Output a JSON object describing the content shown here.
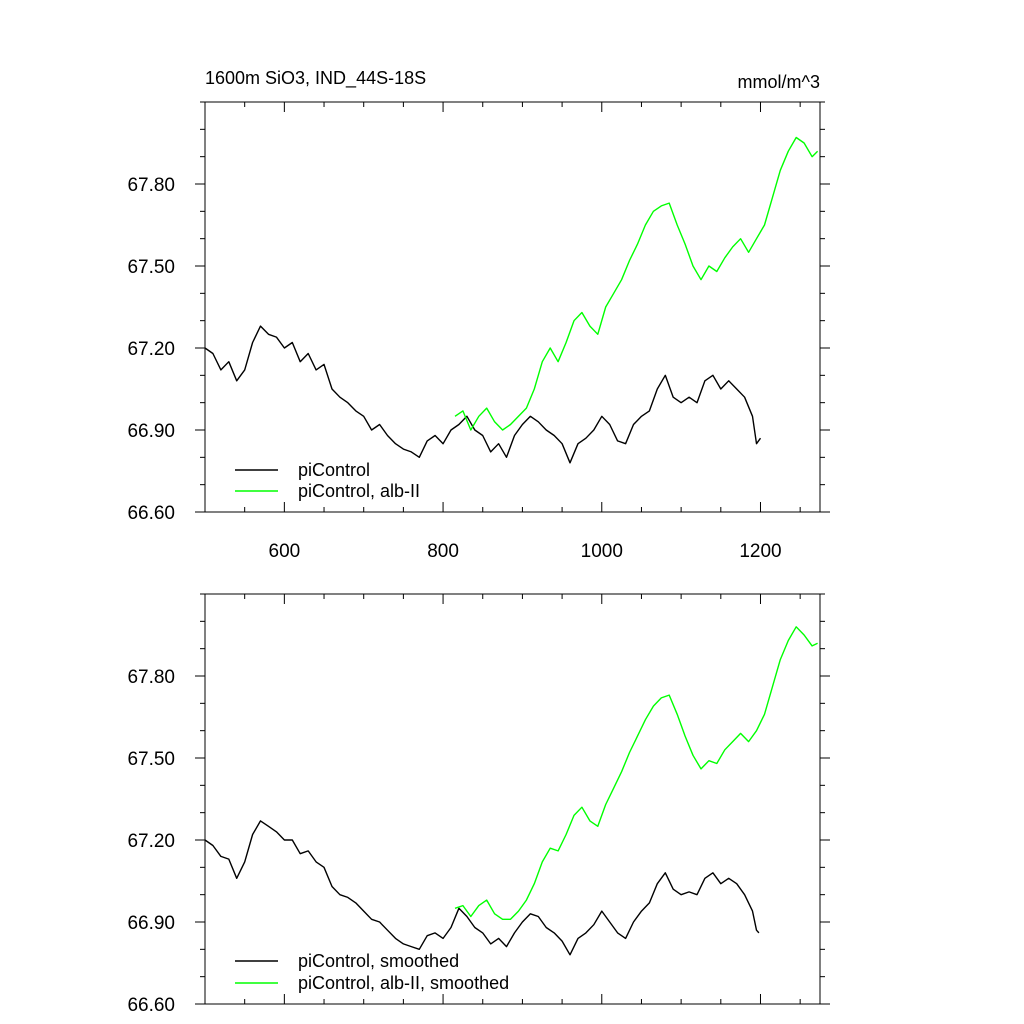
{
  "chart_data": [
    {
      "type": "line",
      "title_left": "1600m SiO3, IND_44S-18S",
      "title_right": "mmol/m^3",
      "xlabel": "",
      "ylabel": "",
      "xlim": [
        500,
        1275
      ],
      "ylim": [
        66.6,
        68.1
      ],
      "xticks": [
        600,
        800,
        1000,
        1200
      ],
      "xtick_labels": [
        "600",
        "800",
        "1000",
        "1200"
      ],
      "yticks": [
        66.6,
        66.9,
        67.2,
        67.5,
        67.8
      ],
      "ytick_labels": [
        "66.60",
        "66.90",
        "67.20",
        "67.50",
        "67.80"
      ],
      "legend_position": "bottom-left",
      "series": [
        {
          "name": "piControl",
          "color": "#000000",
          "points": [
            [
              500,
              67.2
            ],
            [
              510,
              67.18
            ],
            [
              520,
              67.12
            ],
            [
              530,
              67.15
            ],
            [
              540,
              67.08
            ],
            [
              550,
              67.12
            ],
            [
              560,
              67.22
            ],
            [
              570,
              67.28
            ],
            [
              580,
              67.25
            ],
            [
              590,
              67.24
            ],
            [
              600,
              67.2
            ],
            [
              610,
              67.22
            ],
            [
              620,
              67.15
            ],
            [
              630,
              67.18
            ],
            [
              640,
              67.12
            ],
            [
              650,
              67.14
            ],
            [
              660,
              67.05
            ],
            [
              670,
              67.02
            ],
            [
              680,
              67.0
            ],
            [
              690,
              66.97
            ],
            [
              700,
              66.95
            ],
            [
              710,
              66.9
            ],
            [
              720,
              66.92
            ],
            [
              730,
              66.88
            ],
            [
              740,
              66.85
            ],
            [
              750,
              66.83
            ],
            [
              760,
              66.82
            ],
            [
              770,
              66.8
            ],
            [
              780,
              66.86
            ],
            [
              790,
              66.88
            ],
            [
              800,
              66.85
            ],
            [
              810,
              66.9
            ],
            [
              820,
              66.92
            ],
            [
              830,
              66.95
            ],
            [
              840,
              66.9
            ],
            [
              850,
              66.88
            ],
            [
              860,
              66.82
            ],
            [
              870,
              66.85
            ],
            [
              880,
              66.8
            ],
            [
              890,
              66.88
            ],
            [
              900,
              66.92
            ],
            [
              910,
              66.95
            ],
            [
              920,
              66.93
            ],
            [
              930,
              66.9
            ],
            [
              940,
              66.88
            ],
            [
              950,
              66.85
            ],
            [
              960,
              66.78
            ],
            [
              970,
              66.85
            ],
            [
              980,
              66.87
            ],
            [
              990,
              66.9
            ],
            [
              1000,
              66.95
            ],
            [
              1010,
              66.92
            ],
            [
              1020,
              66.86
            ],
            [
              1030,
              66.85
            ],
            [
              1040,
              66.92
            ],
            [
              1050,
              66.95
            ],
            [
              1060,
              66.97
            ],
            [
              1070,
              67.05
            ],
            [
              1080,
              67.1
            ],
            [
              1090,
              67.02
            ],
            [
              1100,
              67.0
            ],
            [
              1110,
              67.02
            ],
            [
              1120,
              67.0
            ],
            [
              1130,
              67.08
            ],
            [
              1140,
              67.1
            ],
            [
              1150,
              67.05
            ],
            [
              1160,
              67.08
            ],
            [
              1170,
              67.05
            ],
            [
              1180,
              67.02
            ],
            [
              1190,
              66.95
            ],
            [
              1195,
              66.85
            ],
            [
              1200,
              66.87
            ]
          ]
        },
        {
          "name": "piControl, alb-II",
          "color": "#00ff00",
          "points": [
            [
              815,
              66.95
            ],
            [
              825,
              66.97
            ],
            [
              835,
              66.9
            ],
            [
              845,
              66.95
            ],
            [
              855,
              66.98
            ],
            [
              865,
              66.93
            ],
            [
              875,
              66.9
            ],
            [
              885,
              66.92
            ],
            [
              895,
              66.95
            ],
            [
              905,
              66.98
            ],
            [
              915,
              67.05
            ],
            [
              925,
              67.15
            ],
            [
              935,
              67.2
            ],
            [
              945,
              67.15
            ],
            [
              955,
              67.22
            ],
            [
              965,
              67.3
            ],
            [
              975,
              67.33
            ],
            [
              985,
              67.28
            ],
            [
              995,
              67.25
            ],
            [
              1005,
              67.35
            ],
            [
              1015,
              67.4
            ],
            [
              1025,
              67.45
            ],
            [
              1035,
              67.52
            ],
            [
              1045,
              67.58
            ],
            [
              1055,
              67.65
            ],
            [
              1065,
              67.7
            ],
            [
              1075,
              67.72
            ],
            [
              1085,
              67.73
            ],
            [
              1095,
              67.65
            ],
            [
              1105,
              67.58
            ],
            [
              1115,
              67.5
            ],
            [
              1125,
              67.45
            ],
            [
              1135,
              67.5
            ],
            [
              1145,
              67.48
            ],
            [
              1155,
              67.53
            ],
            [
              1165,
              67.57
            ],
            [
              1175,
              67.6
            ],
            [
              1185,
              67.55
            ],
            [
              1195,
              67.6
            ],
            [
              1205,
              67.65
            ],
            [
              1215,
              67.75
            ],
            [
              1225,
              67.85
            ],
            [
              1235,
              67.92
            ],
            [
              1245,
              67.97
            ],
            [
              1255,
              67.95
            ],
            [
              1265,
              67.9
            ],
            [
              1272,
              67.92
            ]
          ]
        }
      ]
    },
    {
      "type": "line",
      "xlim": [
        500,
        1275
      ],
      "ylim": [
        66.6,
        68.1
      ],
      "xticks": [
        600,
        800,
        1000,
        1200
      ],
      "yticks": [
        66.6,
        66.9,
        67.2,
        67.5,
        67.8
      ],
      "ytick_labels": [
        "66.60",
        "66.90",
        "67.20",
        "67.50",
        "67.80"
      ],
      "legend_position": "bottom-left",
      "series": [
        {
          "name": "piControl, smoothed",
          "color": "#000000",
          "points": [
            [
              500,
              67.2
            ],
            [
              510,
              67.18
            ],
            [
              520,
              67.14
            ],
            [
              530,
              67.13
            ],
            [
              540,
              67.06
            ],
            [
              550,
              67.12
            ],
            [
              560,
              67.22
            ],
            [
              570,
              67.27
            ],
            [
              580,
              67.25
            ],
            [
              590,
              67.23
            ],
            [
              600,
              67.2
            ],
            [
              610,
              67.2
            ],
            [
              620,
              67.15
            ],
            [
              630,
              67.16
            ],
            [
              640,
              67.12
            ],
            [
              650,
              67.1
            ],
            [
              660,
              67.03
            ],
            [
              670,
              67.0
            ],
            [
              680,
              66.99
            ],
            [
              690,
              66.97
            ],
            [
              700,
              66.94
            ],
            [
              710,
              66.91
            ],
            [
              720,
              66.9
            ],
            [
              730,
              66.87
            ],
            [
              740,
              66.84
            ],
            [
              750,
              66.82
            ],
            [
              760,
              66.81
            ],
            [
              770,
              66.8
            ],
            [
              780,
              66.85
            ],
            [
              790,
              66.86
            ],
            [
              800,
              66.84
            ],
            [
              810,
              66.88
            ],
            [
              820,
              66.95
            ],
            [
              830,
              66.92
            ],
            [
              840,
              66.88
            ],
            [
              850,
              66.86
            ],
            [
              860,
              66.82
            ],
            [
              870,
              66.84
            ],
            [
              880,
              66.81
            ],
            [
              890,
              66.86
            ],
            [
              900,
              66.9
            ],
            [
              910,
              66.93
            ],
            [
              920,
              66.92
            ],
            [
              930,
              66.88
            ],
            [
              940,
              66.86
            ],
            [
              950,
              66.83
            ],
            [
              960,
              66.78
            ],
            [
              970,
              66.84
            ],
            [
              980,
              66.86
            ],
            [
              990,
              66.89
            ],
            [
              1000,
              66.94
            ],
            [
              1010,
              66.9
            ],
            [
              1020,
              66.86
            ],
            [
              1030,
              66.84
            ],
            [
              1040,
              66.9
            ],
            [
              1050,
              66.94
            ],
            [
              1060,
              66.97
            ],
            [
              1070,
              67.04
            ],
            [
              1080,
              67.08
            ],
            [
              1090,
              67.02
            ],
            [
              1100,
              67.0
            ],
            [
              1110,
              67.01
            ],
            [
              1120,
              67.0
            ],
            [
              1130,
              67.06
            ],
            [
              1140,
              67.08
            ],
            [
              1150,
              67.04
            ],
            [
              1160,
              67.06
            ],
            [
              1170,
              67.04
            ],
            [
              1180,
              67.0
            ],
            [
              1190,
              66.94
            ],
            [
              1195,
              66.87
            ],
            [
              1198,
              66.86
            ]
          ]
        },
        {
          "name": "piControl, alb-II, smoothed",
          "color": "#00ff00",
          "points": [
            [
              815,
              66.95
            ],
            [
              825,
              66.96
            ],
            [
              835,
              66.92
            ],
            [
              845,
              66.96
            ],
            [
              855,
              66.98
            ],
            [
              865,
              66.93
            ],
            [
              875,
              66.91
            ],
            [
              885,
              66.91
            ],
            [
              895,
              66.94
            ],
            [
              905,
              66.98
            ],
            [
              915,
              67.04
            ],
            [
              925,
              67.12
            ],
            [
              935,
              67.17
            ],
            [
              945,
              67.16
            ],
            [
              955,
              67.22
            ],
            [
              965,
              67.29
            ],
            [
              975,
              67.32
            ],
            [
              985,
              67.27
            ],
            [
              995,
              67.25
            ],
            [
              1005,
              67.33
            ],
            [
              1015,
              67.39
            ],
            [
              1025,
              67.45
            ],
            [
              1035,
              67.52
            ],
            [
              1045,
              67.58
            ],
            [
              1055,
              67.64
            ],
            [
              1065,
              67.69
            ],
            [
              1075,
              67.72
            ],
            [
              1085,
              67.73
            ],
            [
              1095,
              67.66
            ],
            [
              1105,
              67.58
            ],
            [
              1115,
              67.51
            ],
            [
              1125,
              67.46
            ],
            [
              1135,
              67.49
            ],
            [
              1145,
              67.48
            ],
            [
              1155,
              67.53
            ],
            [
              1165,
              67.56
            ],
            [
              1175,
              67.59
            ],
            [
              1185,
              67.56
            ],
            [
              1195,
              67.6
            ],
            [
              1205,
              67.66
            ],
            [
              1215,
              67.76
            ],
            [
              1225,
              67.86
            ],
            [
              1235,
              67.93
            ],
            [
              1245,
              67.98
            ],
            [
              1255,
              67.95
            ],
            [
              1265,
              67.91
            ],
            [
              1272,
              67.92
            ]
          ]
        }
      ]
    }
  ]
}
